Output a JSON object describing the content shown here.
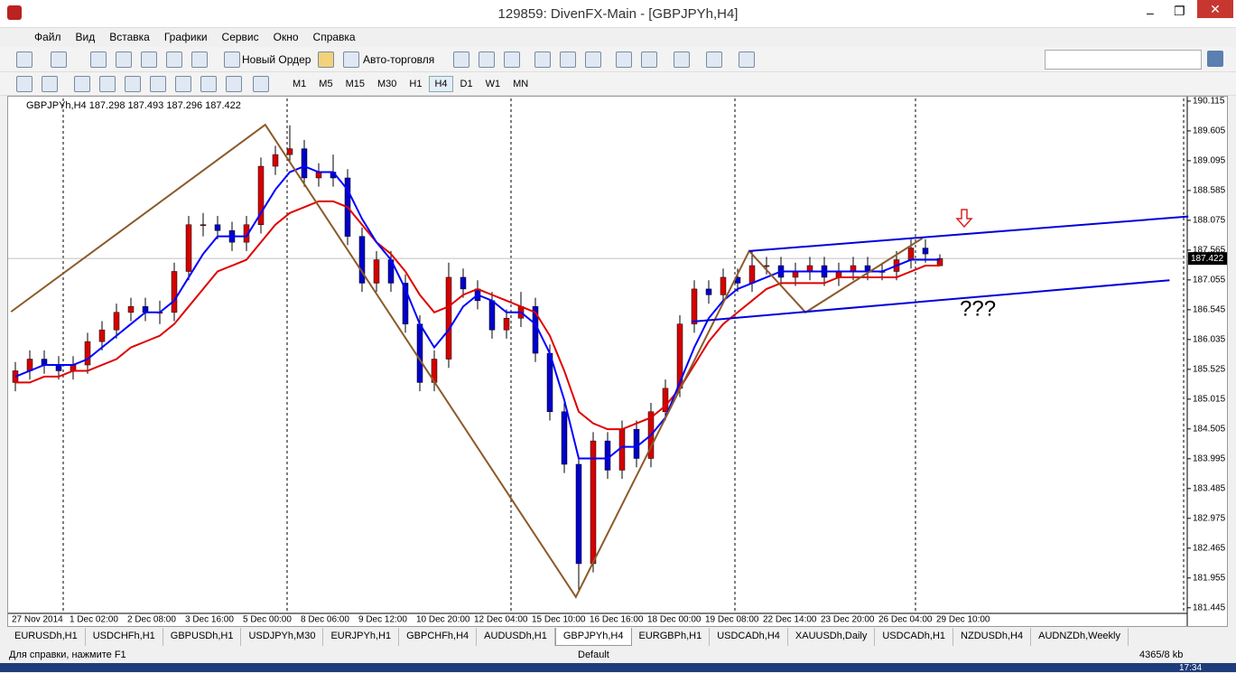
{
  "window": {
    "title": "129859: DivenFX-Main - [GBPJPYh,H4]"
  },
  "menu": [
    "Файл",
    "Вид",
    "Вставка",
    "Графики",
    "Сервис",
    "Окно",
    "Справка"
  ],
  "toolbar": {
    "new_order": "Новый Ордер",
    "autotrading": "Авто-торговля"
  },
  "timeframes": [
    "M1",
    "M5",
    "M15",
    "M30",
    "H1",
    "H4",
    "D1",
    "W1",
    "MN"
  ],
  "active_timeframe": 5,
  "chart": {
    "type": "candlestick",
    "info": "GBPJPYh,H4  187.298 187.493 187.296 187.422",
    "ylim": [
      181.38,
      190.16
    ],
    "yticks": [
      190.115,
      189.605,
      189.095,
      188.585,
      188.075,
      187.565,
      187.055,
      186.545,
      186.035,
      185.525,
      185.015,
      184.505,
      183.995,
      183.485,
      182.975,
      182.465,
      181.955,
      181.445
    ],
    "current_price": 187.422,
    "up_color": "#d40000",
    "down_color": "#0000c8",
    "time_labels": [
      "27 Nov 2014",
      "1 Dec 02:00",
      "2 Dec 08:00",
      "3 Dec 16:00",
      "5 Dec 00:00",
      "8 Dec 06:00",
      "9 Dec 12:00",
      "10 Dec 20:00",
      "12 Dec 04:00",
      "15 Dec 10:00",
      "16 Dec 16:00",
      "18 Dec 00:00",
      "19 Dec 08:00",
      "22 Dec 14:00",
      "23 Dec 20:00",
      "26 Dec 04:00",
      "29 Dec 10:00"
    ],
    "candles": [
      [
        185.3,
        185.65,
        185.15,
        185.5
      ],
      [
        185.5,
        185.85,
        185.35,
        185.7
      ],
      [
        185.7,
        185.85,
        185.45,
        185.6
      ],
      [
        185.6,
        185.75,
        185.35,
        185.5
      ],
      [
        185.5,
        185.75,
        185.35,
        185.6
      ],
      [
        185.6,
        186.15,
        185.45,
        186.0
      ],
      [
        186.0,
        186.35,
        185.85,
        186.2
      ],
      [
        186.2,
        186.65,
        186.05,
        186.5
      ],
      [
        186.5,
        186.75,
        186.35,
        186.6
      ],
      [
        186.6,
        186.75,
        186.35,
        186.5
      ],
      [
        186.5,
        186.7,
        186.3,
        186.5
      ],
      [
        186.5,
        187.35,
        186.35,
        187.2
      ],
      [
        187.2,
        188.15,
        187.05,
        188.0
      ],
      [
        188.0,
        188.2,
        187.8,
        188.0
      ],
      [
        188.0,
        188.15,
        187.75,
        187.9
      ],
      [
        187.9,
        188.05,
        187.55,
        187.7
      ],
      [
        187.7,
        188.15,
        187.55,
        188.0
      ],
      [
        188.0,
        189.15,
        187.85,
        189.0
      ],
      [
        189.0,
        189.35,
        188.85,
        189.2
      ],
      [
        189.2,
        189.7,
        189.05,
        189.3
      ],
      [
        189.3,
        189.45,
        188.65,
        188.8
      ],
      [
        188.8,
        189.05,
        188.65,
        188.9
      ],
      [
        188.9,
        189.2,
        188.65,
        188.8
      ],
      [
        188.8,
        188.95,
        187.65,
        187.8
      ],
      [
        187.8,
        187.95,
        186.85,
        187.0
      ],
      [
        187.0,
        187.55,
        186.85,
        187.4
      ],
      [
        187.4,
        187.55,
        186.85,
        187.0
      ],
      [
        187.0,
        187.15,
        186.15,
        186.3
      ],
      [
        186.3,
        186.45,
        185.15,
        185.3
      ],
      [
        185.3,
        185.85,
        185.15,
        185.7
      ],
      [
        185.7,
        187.35,
        185.55,
        187.1
      ],
      [
        187.1,
        187.25,
        186.75,
        186.9
      ],
      [
        186.9,
        187.05,
        186.55,
        186.7
      ],
      [
        186.7,
        186.85,
        186.05,
        186.2
      ],
      [
        186.2,
        186.55,
        186.05,
        186.4
      ],
      [
        186.4,
        186.85,
        186.25,
        186.6
      ],
      [
        186.6,
        186.75,
        185.65,
        185.8
      ],
      [
        185.8,
        185.95,
        184.65,
        184.8
      ],
      [
        184.8,
        184.95,
        183.75,
        183.9
      ],
      [
        183.9,
        184.05,
        181.75,
        182.2
      ],
      [
        182.2,
        184.45,
        182.05,
        184.3
      ],
      [
        184.3,
        184.45,
        183.65,
        183.8
      ],
      [
        183.8,
        184.65,
        183.65,
        184.5
      ],
      [
        184.5,
        184.65,
        183.85,
        184.0
      ],
      [
        184.0,
        184.95,
        183.85,
        184.8
      ],
      [
        184.8,
        185.35,
        184.65,
        185.2
      ],
      [
        185.2,
        186.45,
        185.05,
        186.3
      ],
      [
        186.3,
        187.05,
        186.15,
        186.9
      ],
      [
        186.9,
        187.05,
        186.65,
        186.8
      ],
      [
        186.8,
        187.25,
        186.65,
        187.1
      ],
      [
        187.1,
        187.25,
        186.85,
        187.0
      ],
      [
        187.0,
        187.55,
        186.85,
        187.3
      ],
      [
        187.3,
        187.45,
        187.15,
        187.3
      ],
      [
        187.3,
        187.45,
        186.95,
        187.1
      ],
      [
        187.1,
        187.35,
        186.95,
        187.2
      ],
      [
        187.2,
        187.45,
        187.05,
        187.3
      ],
      [
        187.3,
        187.45,
        186.95,
        187.1
      ],
      [
        187.1,
        187.35,
        186.95,
        187.2
      ],
      [
        187.2,
        187.45,
        187.05,
        187.3
      ],
      [
        187.3,
        187.45,
        187.05,
        187.2
      ],
      [
        187.2,
        187.35,
        187.05,
        187.2
      ],
      [
        187.2,
        187.55,
        187.05,
        187.4
      ],
      [
        187.4,
        187.75,
        187.25,
        187.6
      ],
      [
        187.6,
        187.75,
        187.35,
        187.5
      ],
      [
        187.298,
        187.493,
        187.296,
        187.422
      ]
    ],
    "ma_fast": {
      "color": "#0000ff",
      "values": [
        185.4,
        185.5,
        185.6,
        185.6,
        185.6,
        185.7,
        185.9,
        186.1,
        186.3,
        186.5,
        186.5,
        186.7,
        187.1,
        187.5,
        187.8,
        187.8,
        187.8,
        188.2,
        188.6,
        188.9,
        189.0,
        188.9,
        188.9,
        188.6,
        188.1,
        187.7,
        187.4,
        186.9,
        186.3,
        185.9,
        186.2,
        186.6,
        186.8,
        186.7,
        186.5,
        186.5,
        186.3,
        185.8,
        185.0,
        184.0,
        184.0,
        184.0,
        184.2,
        184.2,
        184.4,
        184.7,
        185.3,
        185.9,
        186.4,
        186.7,
        186.9,
        187.0,
        187.1,
        187.2,
        187.2,
        187.2,
        187.2,
        187.2,
        187.2,
        187.2,
        187.2,
        187.3,
        187.4,
        187.4,
        187.4
      ]
    },
    "ma_slow": {
      "color": "#e00000",
      "values": [
        185.3,
        185.3,
        185.4,
        185.4,
        185.5,
        185.5,
        185.6,
        185.7,
        185.9,
        186.0,
        186.1,
        186.3,
        186.6,
        186.9,
        187.2,
        187.3,
        187.4,
        187.7,
        188.0,
        188.2,
        188.3,
        188.4,
        188.4,
        188.3,
        188.0,
        187.7,
        187.5,
        187.2,
        186.8,
        186.5,
        186.6,
        186.8,
        186.9,
        186.8,
        186.7,
        186.6,
        186.5,
        186.1,
        185.5,
        184.8,
        184.6,
        184.5,
        184.5,
        184.6,
        184.7,
        184.9,
        185.2,
        185.6,
        186.0,
        186.3,
        186.5,
        186.7,
        186.9,
        187.0,
        187.0,
        187.0,
        187.0,
        187.1,
        187.1,
        187.1,
        187.1,
        187.1,
        187.2,
        187.3,
        187.3
      ]
    },
    "zigzag": {
      "color": "#8b5a2b",
      "x": [
        -0.3,
        17.3,
        38.8,
        50.8,
        54.7,
        62.8
      ],
      "values": [
        186.51,
        189.71,
        181.63,
        187.55,
        186.5,
        187.77
      ]
    },
    "channel": {
      "color": "#0000dd",
      "lines": [
        {
          "x": [
            50.8,
            81.2
          ],
          "values": [
            187.55,
            188.14
          ]
        },
        {
          "x": [
            46.8,
            79.9
          ],
          "values": [
            186.34,
            187.05
          ]
        }
      ]
    },
    "annotation": "???"
  },
  "tabs": [
    "EURUSDh,H1",
    "USDCHFh,H1",
    "GBPUSDh,H1",
    "USDJPYh,M30",
    "EURJPYh,H1",
    "GBPCHFh,H4",
    "AUDUSDh,H1",
    "GBPJPYh,H4",
    "EURGBPh,H1",
    "USDCADh,H4",
    "XAUUSDh,Daily",
    "USDCADh,H1",
    "NZDUSDh,H4",
    "AUDNZDh,Weekly"
  ],
  "active_tab": 7,
  "status": {
    "help": "Для справки, нажмите F1",
    "profile": "Default",
    "traffic": "4365/8 kb"
  },
  "clock": "17:34"
}
